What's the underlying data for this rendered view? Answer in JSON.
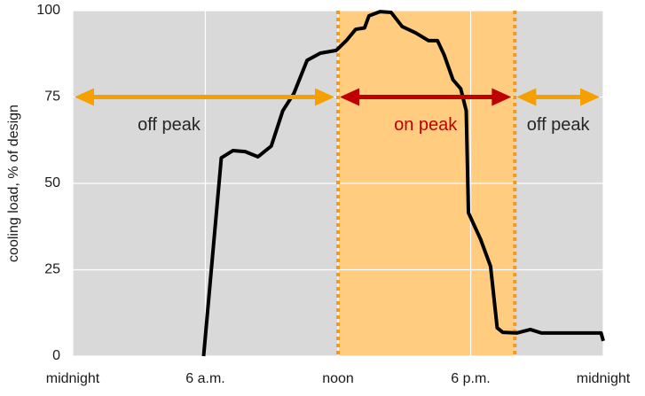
{
  "chart_data": {
    "type": "line",
    "y_label": "cooling load, % of design",
    "x": [
      5.92,
      6.72,
      7.25,
      7.8,
      8.38,
      8.98,
      9.5,
      10,
      10.6,
      11.2,
      11.92,
      12.4,
      12.8,
      13.2,
      13.4,
      13.9,
      14.4,
      14.9,
      15.5,
      16.1,
      16.5,
      16.8,
      17.2,
      17.55,
      17.8,
      17.9,
      18.45,
      18.9,
      19.2,
      19.45,
      20.1,
      20.7,
      21.2,
      23.9,
      24
    ],
    "series": [
      {
        "color": "#000000",
        "values": [
          0,
          57.4,
          59.5,
          59.2,
          57.7,
          60.8,
          71,
          76,
          85.6,
          87.7,
          88.5,
          91.5,
          94.6,
          95,
          98.5,
          99.7,
          99.5,
          95.4,
          93.6,
          91.3,
          91.3,
          87.2,
          80,
          77.4,
          71,
          41.5,
          33.8,
          26,
          8.2,
          6.9,
          6.7,
          7.7,
          6.7,
          6.7,
          4.4
        ]
      }
    ],
    "xlim": [
      0,
      24
    ],
    "xticks": [
      {
        "value": 0,
        "label": "midnight"
      },
      {
        "value": 6,
        "label": "6 a.m."
      },
      {
        "value": 12,
        "label": "noon"
      },
      {
        "value": 18,
        "label": "6 p.m."
      },
      {
        "value": 24,
        "label": "midnight"
      }
    ],
    "ylim": [
      0,
      100
    ],
    "yticks": [
      0,
      25,
      50,
      75,
      100
    ],
    "grid": true,
    "background": "#d9d9d9",
    "highlight": {
      "start": 12,
      "end": 20,
      "color": "#ffcc80",
      "border_color": "#f29a1f"
    },
    "periods": [
      {
        "label": "off peak",
        "start": 0,
        "end": 12,
        "level": 75,
        "color": "#f5a000",
        "text_color": "#262626"
      },
      {
        "label": "on peak",
        "start": 12,
        "end": 20,
        "level": 75,
        "color": "#c00000",
        "text_color": "#c00000"
      },
      {
        "label": "off peak",
        "start": 20,
        "end": 24,
        "level": 75,
        "color": "#f5a000",
        "text_color": "#262626"
      }
    ]
  }
}
